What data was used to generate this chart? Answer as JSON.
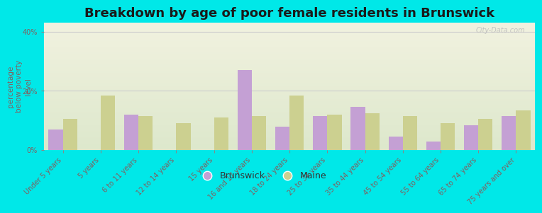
{
  "title": "Breakdown by age of poor female residents in Brunswick",
  "categories": [
    "Under 5 years",
    "5 years",
    "6 to 11 years",
    "12 to 14 years",
    "15 years",
    "16 and 17 years",
    "18 to 24 years",
    "25 to 34 years",
    "35 to 44 years",
    "45 to 54 years",
    "55 to 64 years",
    "65 to 74 years",
    "75 years and over"
  ],
  "brunswick_values": [
    7.0,
    0.0,
    12.0,
    0.0,
    0.0,
    27.0,
    8.0,
    11.5,
    14.5,
    4.5,
    3.0,
    8.5,
    11.5
  ],
  "maine_values": [
    10.5,
    18.5,
    11.5,
    9.0,
    11.0,
    11.5,
    18.5,
    12.0,
    12.5,
    11.5,
    9.0,
    10.5,
    13.5
  ],
  "brunswick_color": "#c4a0d4",
  "maine_color": "#ccd090",
  "background_color": "#00e8e8",
  "plot_bg_color_top": "#f2f2e0",
  "plot_bg_color_bottom": "#dde8cc",
  "ylabel": "percentage\nbelow poverty\nlevel",
  "ylim_max": 43,
  "bar_width": 0.38,
  "title_fontsize": 13,
  "axis_label_fontsize": 7.5,
  "tick_label_fontsize": 7,
  "legend_fontsize": 9,
  "tick_color": "#806060",
  "watermark": "City-Data.com"
}
